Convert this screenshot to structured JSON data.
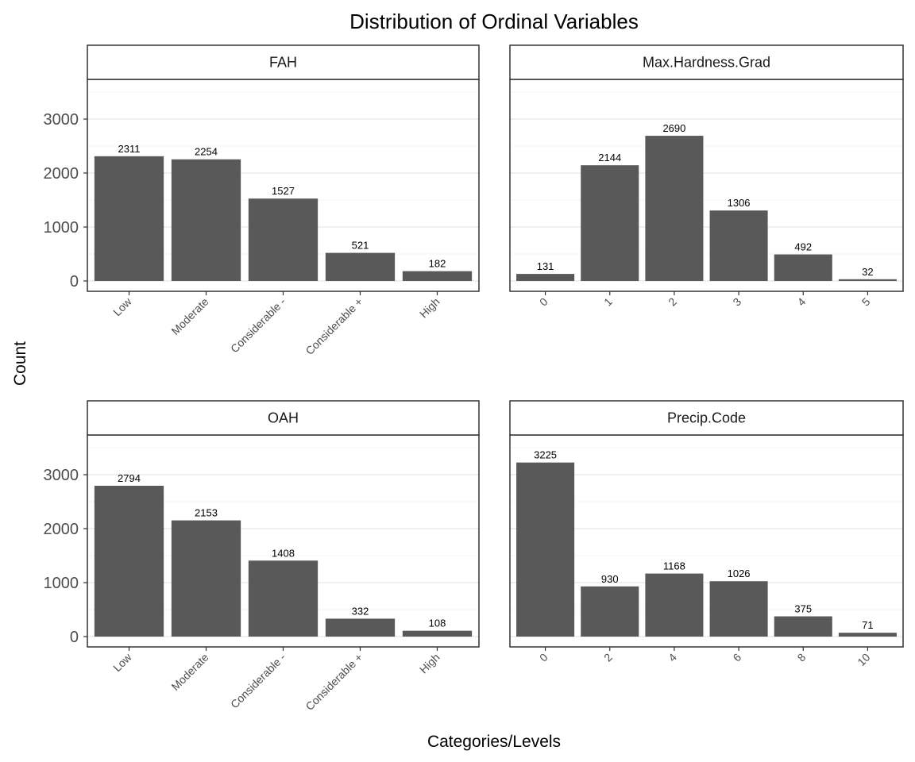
{
  "title": "Distribution of Ordinal Variables",
  "xlabel": "Categories/Levels",
  "ylabel": "Count",
  "colors": {
    "bar": "#595959",
    "grid": "#ebebeb",
    "frame": "#333333"
  },
  "chart_data": [
    {
      "type": "bar",
      "facet": "FAH",
      "categories": [
        "Low",
        "Moderate",
        "Considerable -",
        "Considerable +",
        "High"
      ],
      "values": [
        2311,
        2254,
        1527,
        521,
        182
      ],
      "ylim": [
        0,
        4000
      ],
      "yticks": [
        0,
        1000,
        2000,
        3000
      ],
      "grid": true
    },
    {
      "type": "bar",
      "facet": "Max.Hardness.Grad",
      "categories": [
        "0",
        "1",
        "2",
        "3",
        "4",
        "5"
      ],
      "values": [
        131,
        2144,
        2690,
        1306,
        492,
        32
      ],
      "ylim": [
        0,
        4000
      ],
      "yticks": [
        0,
        1000,
        2000,
        3000
      ],
      "grid": true
    },
    {
      "type": "bar",
      "facet": "OAH",
      "categories": [
        "Low",
        "Moderate",
        "Considerable -",
        "Considerable +",
        "High"
      ],
      "values": [
        2794,
        2153,
        1408,
        332,
        108
      ],
      "ylim": [
        0,
        4000
      ],
      "yticks": [
        0,
        1000,
        2000,
        3000
      ],
      "grid": true
    },
    {
      "type": "bar",
      "facet": "Precip.Code",
      "categories": [
        "0",
        "2",
        "4",
        "6",
        "8",
        "10"
      ],
      "values": [
        3225,
        930,
        1168,
        1026,
        375,
        71
      ],
      "ylim": [
        0,
        4000
      ],
      "yticks": [
        0,
        1000,
        2000,
        3000
      ],
      "grid": true
    }
  ]
}
